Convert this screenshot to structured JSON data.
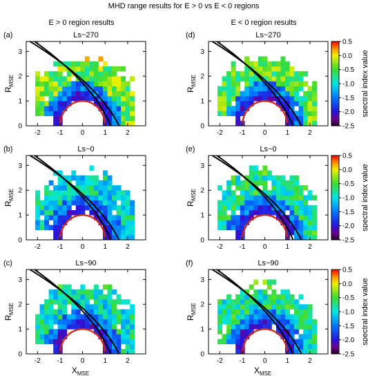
{
  "figure": {
    "title": "MHD range results for E > 0 vs E < 0 regions",
    "col_titles": [
      "E > 0 region results",
      "E < 0 region results"
    ],
    "colorbar": {
      "label": "spectral index value",
      "ticks": [
        "0.5",
        "0.0",
        "-0.5",
        "-1.0",
        "-1.5",
        "-2.0",
        "-2.5"
      ]
    },
    "axis": {
      "xlabel": "X",
      "xlabel_sub": "MSE",
      "ylabel": "R",
      "ylabel_sub": "MSE",
      "xticks": [
        "-2",
        "-1",
        "0",
        "1",
        "2"
      ],
      "yticks": [
        "0",
        "1",
        "2",
        "3"
      ]
    }
  },
  "chart_data": [
    {
      "type": "heatmap",
      "panel": "(a)",
      "title": "Ls~270",
      "column": "E > 0",
      "xlim": [
        -2.5,
        2.8
      ],
      "ylim": [
        0,
        3.4
      ],
      "value_range": [
        -2.5,
        0.5
      ],
      "typical_value": -0.4
    },
    {
      "type": "heatmap",
      "panel": "(d)",
      "title": "Ls~270",
      "column": "E < 0",
      "xlim": [
        -2.5,
        2.8
      ],
      "ylim": [
        0,
        3.4
      ],
      "value_range": [
        -2.5,
        0.5
      ],
      "typical_value": -0.5
    },
    {
      "type": "heatmap",
      "panel": "(b)",
      "title": "Ls~0",
      "column": "E > 0",
      "xlim": [
        -2.5,
        2.8
      ],
      "ylim": [
        0,
        3.4
      ],
      "value_range": [
        -2.5,
        0.5
      ],
      "typical_value": -1.0
    },
    {
      "type": "heatmap",
      "panel": "(e)",
      "title": "Ls~0",
      "column": "E < 0",
      "xlim": [
        -2.5,
        2.8
      ],
      "ylim": [
        0,
        3.4
      ],
      "value_range": [
        -2.5,
        0.5
      ],
      "typical_value": -0.8
    },
    {
      "type": "heatmap",
      "panel": "(c)",
      "title": "Ls~90",
      "column": "E > 0",
      "xlim": [
        -2.5,
        2.8
      ],
      "ylim": [
        0,
        3.4
      ],
      "value_range": [
        -2.5,
        0.5
      ],
      "typical_value": -0.9
    },
    {
      "type": "heatmap",
      "panel": "(f)",
      "title": "Ls~90",
      "column": "E < 0",
      "xlim": [
        -2.5,
        2.8
      ],
      "ylim": [
        0,
        3.4
      ],
      "value_range": [
        -2.5,
        0.5
      ],
      "typical_value": -0.8
    }
  ]
}
